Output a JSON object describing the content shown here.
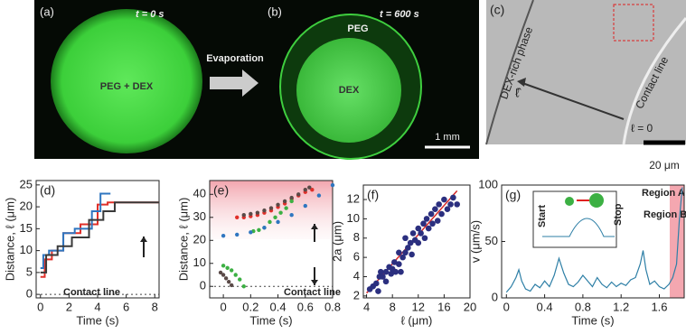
{
  "panels": {
    "a": {
      "label": "(a)",
      "time": "t = 0 s",
      "content": "PEG + DEX"
    },
    "arrow": "Evaporation",
    "b": {
      "label": "(b)",
      "time": "t = 600 s",
      "outer": "PEG",
      "inner": "DEX",
      "scale": "1 mm"
    },
    "c": {
      "label": "(c)",
      "phase": "DEX-rich phase",
      "contact": "Contact line",
      "axis": "ℓ̂",
      "origin": "ℓ = 0",
      "scale": "20 μm"
    }
  },
  "chart_data": [
    {
      "type": "line",
      "label": "(d)",
      "xlabel": "Time (s)",
      "ylabel": "Distance, ℓ (μm)",
      "xlim": [
        -0.3,
        8.3
      ],
      "ylim": [
        -0.8,
        26
      ],
      "xticks": [
        0,
        2,
        4,
        6,
        8
      ],
      "yticks": [
        0,
        5,
        10,
        15,
        20,
        25
      ],
      "zero_line": true,
      "annotations": [
        "Contact line"
      ],
      "series": [
        {
          "color": "#e0302a",
          "x": [
            0,
            0.3,
            0.3,
            0.8,
            0.8,
            1.6,
            1.6,
            2.8,
            2.8,
            4,
            4,
            4.7,
            4.7,
            8.3
          ],
          "values": [
            4,
            4,
            8,
            8,
            10,
            10,
            14,
            14,
            16,
            16,
            20.5,
            20.5,
            21,
            21
          ]
        },
        {
          "color": "#2f76c0",
          "x": [
            0,
            0.2,
            0.2,
            0.6,
            0.6,
            1.6,
            1.6,
            2.4,
            2.4,
            3.6,
            3.6,
            4.2,
            4.2,
            4.9
          ],
          "values": [
            6,
            6,
            9,
            9,
            10,
            10,
            14,
            14,
            15,
            15,
            19,
            19,
            23,
            23
          ]
        },
        {
          "color": "#3a3a3a",
          "x": [
            0,
            0.4,
            0.4,
            1.2,
            1.2,
            2.2,
            2.2,
            3.4,
            3.4,
            4.4,
            4.4,
            5.2,
            5.2,
            8.3
          ],
          "values": [
            5,
            5,
            9,
            9,
            11,
            11,
            13,
            13,
            17,
            17,
            19,
            19,
            21,
            21
          ]
        }
      ]
    },
    {
      "type": "scatter",
      "label": "(e)",
      "xlabel": "Time (s)",
      "ylabel": "Distance, ℓ (μm)",
      "xlim": [
        -0.1,
        0.8
      ],
      "ylim": [
        -5,
        46
      ],
      "xticks": [
        0,
        0.2,
        0.4,
        0.6,
        0.8
      ],
      "yticks": [
        0,
        10,
        20,
        30,
        40
      ],
      "zero_line": true,
      "annotations": [
        "Contact line"
      ],
      "series": [
        {
          "color": "#e0302a",
          "x": [
            0.1,
            0.15,
            0.2,
            0.25,
            0.3,
            0.35,
            0.4,
            0.45,
            0.5,
            0.55,
            0.6,
            0.65
          ],
          "values": [
            30,
            30,
            30.5,
            31,
            32,
            33,
            34.5,
            36,
            38,
            39.5,
            41,
            42
          ]
        },
        {
          "color": "#5a4a48",
          "x": [
            0.15,
            0.2,
            0.25,
            0.3,
            0.35,
            0.4,
            0.45,
            0.5,
            0.55,
            0.6,
            0.63
          ],
          "values": [
            31,
            31.5,
            32,
            33,
            34,
            35.5,
            37,
            38.5,
            40,
            42,
            43
          ]
        },
        {
          "color": "#3cb043",
          "x": [
            0.22,
            0.26,
            0.3,
            0.34,
            0.38,
            0.42,
            0.46,
            0.5
          ],
          "values": [
            24,
            24.5,
            25.5,
            28,
            30,
            32,
            34,
            37
          ]
        },
        {
          "color": "#2f76c0",
          "x": [
            0,
            0.1,
            0.2,
            0.3,
            0.4,
            0.5,
            0.6,
            0.7,
            0.8
          ],
          "values": [
            22,
            22.5,
            23.5,
            25.5,
            28,
            31,
            35,
            39.5,
            44
          ]
        },
        {
          "color": "#3cb043",
          "x": [
            0,
            0.03,
            0.06,
            0.09,
            0.12,
            0.15
          ],
          "values": [
            9,
            8,
            7,
            5,
            3,
            0
          ]
        },
        {
          "color": "#5a4a48",
          "x": [
            -0.02,
            0,
            0.02,
            0.04,
            0.06
          ],
          "values": [
            6,
            5,
            3.5,
            2,
            0.5
          ]
        }
      ]
    },
    {
      "type": "scatter",
      "label": "(f)",
      "xlabel": "ℓ (μm)",
      "ylabel": "2a (μm)",
      "xlim": [
        3.5,
        20
      ],
      "ylim": [
        1.8,
        13.5
      ],
      "xticks": [
        4,
        8,
        12,
        16,
        20
      ],
      "yticks": [
        2,
        4,
        6,
        8,
        10,
        12
      ],
      "fit": {
        "color": "#d62a2a",
        "x": [
          4,
          18
        ],
        "values": [
          2.3,
          12.9
        ]
      },
      "series": [
        {
          "color": "#2b2f7f",
          "x": [
            4.5,
            5,
            5.5,
            5.8,
            6,
            6.2,
            6.5,
            7,
            7,
            7.5,
            7.8,
            8,
            8.3,
            8.5,
            9,
            9,
            9.3,
            9.6,
            10,
            10,
            10.4,
            10.8,
            11,
            11.2,
            11.5,
            12,
            12,
            12.4,
            12.8,
            13,
            13.3,
            13.6,
            14,
            14.2,
            14.6,
            15,
            15.2,
            15.6,
            16,
            16.5,
            17,
            17.4,
            18
          ],
          "values": [
            2.7,
            3,
            3.3,
            2.5,
            4,
            4.5,
            4,
            4.5,
            3.5,
            5,
            4.3,
            4.8,
            5.5,
            4.5,
            5.3,
            6.5,
            4.5,
            6,
            6.5,
            8,
            7,
            7.5,
            6.3,
            8.5,
            7.8,
            9,
            7.5,
            8.5,
            9.5,
            8,
            10,
            9,
            10.5,
            9.5,
            11,
            9.8,
            11.5,
            10.5,
            12,
            11,
            11.5,
            12.2,
            11.5
          ]
        }
      ]
    },
    {
      "type": "line",
      "label": "(g)",
      "xlabel": "Time (s)",
      "ylabel": "v (μm/s)",
      "xlim": [
        -0.05,
        1.86
      ],
      "ylim": [
        0,
        100
      ],
      "xticks": [
        0,
        0.4,
        0.8,
        1.2,
        1.6
      ],
      "yticks": [
        0,
        50,
        100
      ],
      "annotations": [
        "Region A",
        "Region B",
        "Start",
        "Stop"
      ],
      "series": [
        {
          "color": "#2e7fa6",
          "x": [
            0,
            0.05,
            0.1,
            0.13,
            0.16,
            0.2,
            0.25,
            0.3,
            0.35,
            0.4,
            0.45,
            0.5,
            0.55,
            0.6,
            0.65,
            0.7,
            0.75,
            0.8,
            0.85,
            0.9,
            0.95,
            1.0,
            1.05,
            1.1,
            1.15,
            1.2,
            1.25,
            1.3,
            1.35,
            1.4,
            1.43,
            1.46,
            1.5,
            1.55,
            1.6,
            1.65,
            1.7,
            1.74,
            1.78,
            1.81,
            1.84
          ],
          "values": [
            5,
            10,
            18,
            25,
            15,
            8,
            6,
            12,
            9,
            15,
            10,
            20,
            35,
            22,
            12,
            10,
            14,
            20,
            15,
            10,
            18,
            12,
            9,
            14,
            10,
            13,
            11,
            16,
            18,
            30,
            42,
            25,
            12,
            15,
            10,
            8,
            12,
            18,
            30,
            70,
            98
          ]
        }
      ]
    }
  ]
}
